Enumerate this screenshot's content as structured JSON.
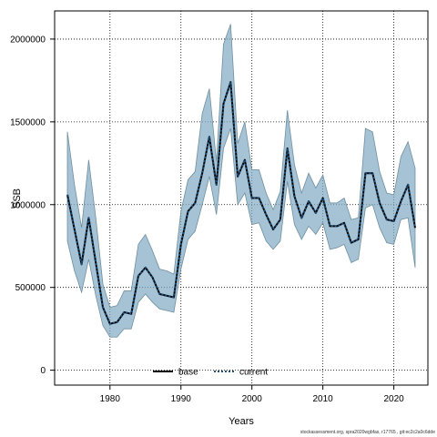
{
  "chart_data": {
    "type": "area",
    "xlabel": "Years",
    "ylabel": "SSB",
    "xlim": [
      1972.2,
      2024.8
    ],
    "ylim": [
      -90000,
      2170000
    ],
    "x_ticks": [
      1980,
      1990,
      2000,
      2010,
      2020
    ],
    "y_ticks": [
      0,
      500000,
      1000000,
      1500000,
      2000000
    ],
    "y_tick_labels": [
      "0",
      "500000",
      "1000000",
      "1500000",
      "2000000"
    ],
    "grid": true,
    "legend_position": "bottom",
    "legend": [
      {
        "label": "base",
        "style": "solid",
        "color": "#000000"
      },
      {
        "label": "current",
        "style": "dotted",
        "color": "#1f4e79"
      }
    ],
    "x": [
      1974,
      1975,
      1976,
      1977,
      1978,
      1979,
      1980,
      1981,
      1982,
      1983,
      1984,
      1985,
      1986,
      1987,
      1988,
      1989,
      1990,
      1991,
      1992,
      1993,
      1994,
      1995,
      1996,
      1997,
      1998,
      1999,
      2000,
      2001,
      2002,
      2003,
      2004,
      2005,
      2006,
      2007,
      2008,
      2009,
      2010,
      2011,
      2012,
      2013,
      2014,
      2015,
      2016,
      2017,
      2018,
      2019,
      2020,
      2021,
      2022,
      2023
    ],
    "series": [
      {
        "name": "base",
        "values": [
          1060000,
          850000,
          640000,
          920000,
          650000,
          380000,
          280000,
          290000,
          350000,
          340000,
          570000,
          620000,
          560000,
          460000,
          450000,
          440000,
          760000,
          960000,
          1010000,
          1190000,
          1410000,
          1120000,
          1610000,
          1740000,
          1170000,
          1270000,
          1040000,
          1040000,
          940000,
          850000,
          910000,
          1340000,
          1050000,
          920000,
          1020000,
          950000,
          1040000,
          870000,
          870000,
          890000,
          770000,
          790000,
          1190000,
          1190000,
          1010000,
          910000,
          900000,
          1020000,
          1120000,
          860000
        ]
      },
      {
        "name": "current",
        "values": [
          1060000,
          850000,
          640000,
          920000,
          650000,
          380000,
          280000,
          290000,
          350000,
          340000,
          570000,
          620000,
          560000,
          460000,
          450000,
          440000,
          760000,
          960000,
          1010000,
          1190000,
          1410000,
          1120000,
          1610000,
          1740000,
          1170000,
          1270000,
          1040000,
          1040000,
          940000,
          850000,
          910000,
          1340000,
          1050000,
          920000,
          1020000,
          950000,
          1040000,
          870000,
          870000,
          890000,
          770000,
          790000,
          1190000,
          1190000,
          1010000,
          910000,
          900000,
          1020000,
          1120000,
          860000
        ]
      }
    ],
    "band": {
      "upper": [
        1440000,
        1120000,
        860000,
        1270000,
        920000,
        520000,
        380000,
        390000,
        480000,
        480000,
        760000,
        820000,
        720000,
        610000,
        600000,
        580000,
        960000,
        1150000,
        1200000,
        1550000,
        1700000,
        1260000,
        1970000,
        2090000,
        1370000,
        1500000,
        1210000,
        1210000,
        1070000,
        970000,
        1080000,
        1570000,
        1240000,
        1070000,
        1190000,
        1100000,
        1180000,
        1010000,
        1010000,
        1040000,
        910000,
        920000,
        1460000,
        1440000,
        1200000,
        1070000,
        1060000,
        1290000,
        1380000,
        1220000
      ],
      "lower": [
        780000,
        600000,
        470000,
        670000,
        450000,
        270000,
        200000,
        200000,
        250000,
        250000,
        410000,
        460000,
        410000,
        370000,
        360000,
        350000,
        610000,
        790000,
        840000,
        1000000,
        1170000,
        940000,
        1340000,
        1460000,
        1000000,
        1070000,
        880000,
        890000,
        780000,
        730000,
        780000,
        1140000,
        880000,
        790000,
        870000,
        820000,
        890000,
        730000,
        740000,
        760000,
        650000,
        670000,
        980000,
        1000000,
        860000,
        770000,
        760000,
        910000,
        920000,
        620000
      ],
      "color": "#7fa9c2"
    }
  },
  "footnote": "stockassessment.org, spra2020wgbfas, r17765 , git:ec2c2a0c6dde"
}
